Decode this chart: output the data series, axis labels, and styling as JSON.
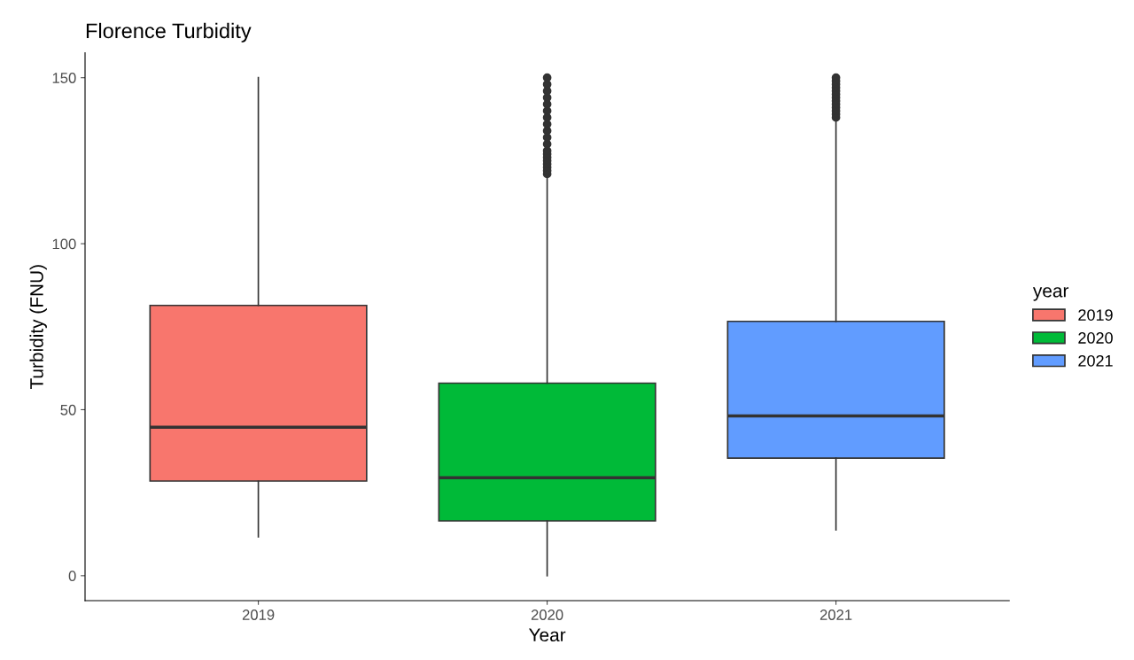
{
  "chart_data": {
    "type": "box",
    "title": "Florence Turbidity",
    "xlabel": "Year",
    "ylabel": "Turbidity (FNU)",
    "legend_title": "year",
    "legend": "right",
    "categories": [
      "2019",
      "2020",
      "2021"
    ],
    "series": [
      {
        "name": "2019",
        "color": "#f8766d",
        "boxes": [
          {
            "low": 11.7,
            "q1": 28.5,
            "median": 44.7,
            "q3": 81.4,
            "high": 150
          },
          null,
          null
        ]
      },
      {
        "name": "2020",
        "color": "#00ba38",
        "boxes": [
          null,
          {
            "low": 0,
            "q1": 16.5,
            "median": 29.5,
            "q3": 58,
            "high": 121,
            "outliers": [
              121,
              122,
              123,
              124,
              125,
              126,
              127,
              128,
              130,
              132,
              134,
              136,
              138,
              140,
              142,
              144,
              146,
              148,
              150
            ]
          },
          null
        ]
      },
      {
        "name": "2021",
        "color": "#619cff",
        "boxes": [
          null,
          null,
          {
            "low": 13.8,
            "q1": 35.4,
            "median": 48.1,
            "q3": 76.6,
            "high": 137.5,
            "outliers": [
              138,
              139,
              140,
              141,
              142,
              143,
              144,
              145,
              146,
              147,
              148,
              149,
              150
            ]
          }
        ]
      }
    ],
    "ylim": [
      -7.5,
      157.5
    ],
    "yticks": [
      0,
      50,
      100,
      150
    ],
    "grid": false
  }
}
